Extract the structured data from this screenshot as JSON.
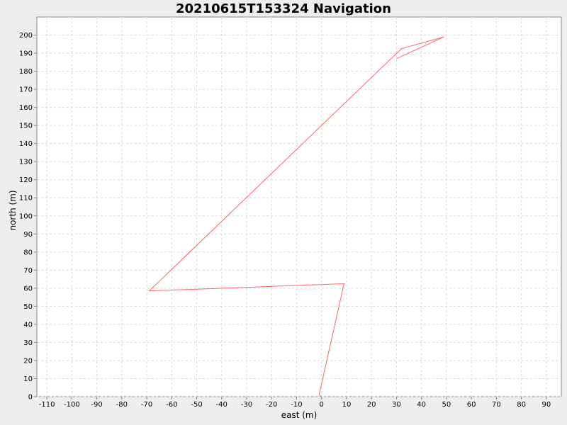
{
  "chart_data": {
    "type": "line",
    "title": "20210615T153324 Navigation",
    "xlabel": "east (m)",
    "ylabel": "north (m)",
    "xlim": [
      -114,
      96
    ],
    "ylim": [
      0,
      210
    ],
    "xticks": [
      -110,
      -100,
      -90,
      -80,
      -70,
      -60,
      -50,
      -40,
      -30,
      -20,
      -10,
      0,
      10,
      20,
      30,
      40,
      50,
      60,
      70,
      80,
      90
    ],
    "yticks": [
      0,
      10,
      20,
      30,
      40,
      50,
      60,
      70,
      80,
      90,
      100,
      110,
      120,
      130,
      140,
      150,
      160,
      170,
      180,
      190,
      200
    ],
    "grid": true,
    "series": [
      {
        "color": "#ff6666",
        "x": [
          0,
          -1,
          9,
          -69,
          32,
          49,
          30
        ],
        "y": [
          0,
          1,
          62.5,
          58.5,
          192.5,
          199,
          187
        ]
      }
    ]
  }
}
